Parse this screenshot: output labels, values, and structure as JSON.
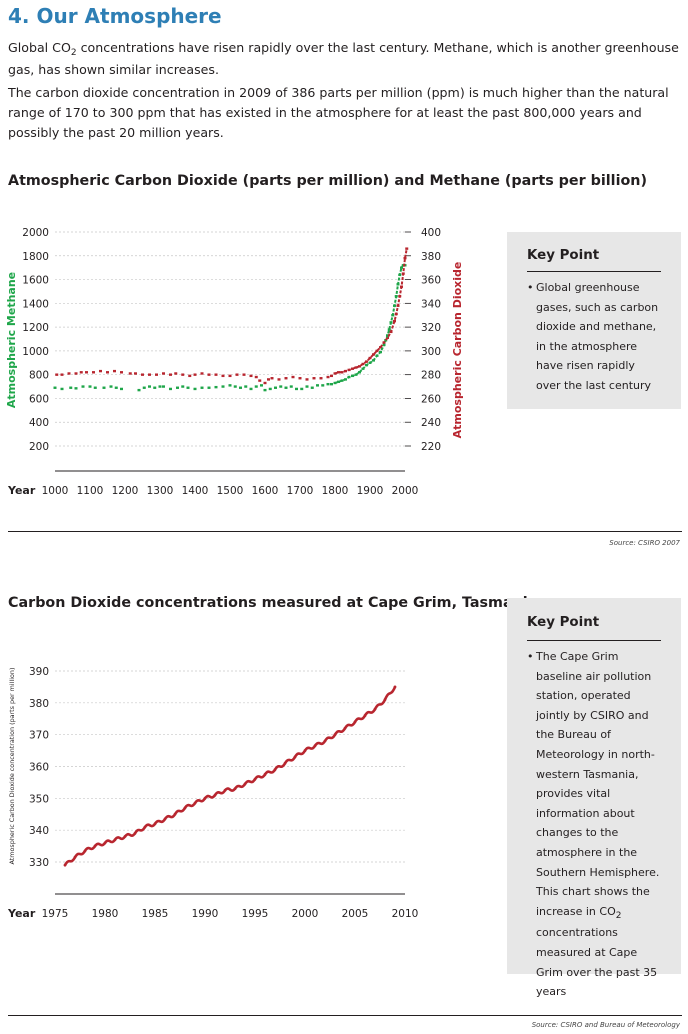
{
  "page": {
    "heading": "4. Our Atmosphere",
    "paragraph1": {
      "before": "Global CO",
      "sub": "2",
      "after": " concentrations have risen rapidly over the last century. Methane, which is another greenhouse gas, has shown similar increases."
    },
    "paragraph2": "The carbon dioxide concentration in 2009 of 386 parts per million (ppm) is much higher than the natural range of 170 to 300 ppm that has existed in the atmosphere for at least the past 800,000 years and possibly the past 20 million years."
  },
  "key_point_1": {
    "title": "Key Point",
    "bullet": "•",
    "text": "Global greenhouse gases, such as carbon dioxide and methane, in the atmosphere have risen rapidly over the last century"
  },
  "key_point_2": {
    "title": "Key Point",
    "bullet": "•",
    "text_before": "The Cape Grim baseline air pollution station, operated jointly by CSIRO and the Bureau of Meteorology in north-western Tasmania, provides vital information about changes to the atmosphere in the Southern Hemisphere. This chart shows the increase in CO",
    "text_sub": "2",
    "text_after": " concentrations measured at Cape Grim over the past 35 years"
  },
  "colors": {
    "methane": "#1fa64a",
    "co2": "#b8262f",
    "heading": "#2e7fb5",
    "keypoint_bg": "#e7e7e7"
  },
  "chart_data": [
    {
      "type": "scatter",
      "title": "Atmospheric Carbon Dioxide (parts per million) and Methane (parts per billion)",
      "source": "Source: CSIRO 2007",
      "xlabel": "Year",
      "x_ticks": [
        "1000",
        "1100",
        "1200",
        "1300",
        "1400",
        "1500",
        "1600",
        "1700",
        "1800",
        "1900",
        "2000"
      ],
      "xlim": [
        1000,
        2000
      ],
      "y_left": {
        "label": "Atmospheric Methane",
        "ticks": [
          "2000",
          "1800",
          "1600",
          "1400",
          "1200",
          "1000",
          "800",
          "600",
          "400",
          "200"
        ],
        "lim": [
          0,
          2000
        ]
      },
      "y_right": {
        "label": "Atmospheric Carbon Dioxide",
        "ticks": [
          "400",
          "380",
          "360",
          "340",
          "320",
          "300",
          "280",
          "260",
          "240",
          "220"
        ],
        "lim": [
          200,
          400
        ]
      },
      "grid": true,
      "series": [
        {
          "axis": "left",
          "x": [
            1000,
            1020,
            1045,
            1060,
            1080,
            1100,
            1115,
            1140,
            1160,
            1175,
            1190,
            1240,
            1255,
            1270,
            1285,
            1300,
            1310,
            1330,
            1350,
            1365,
            1380,
            1400,
            1420,
            1440,
            1460,
            1480,
            1500,
            1515,
            1530,
            1545,
            1560,
            1575,
            1590,
            1600,
            1615,
            1630,
            1645,
            1660,
            1675,
            1690,
            1705,
            1720,
            1735,
            1750,
            1765,
            1780,
            1790,
            1800,
            1810,
            1820,
            1830,
            1840,
            1850,
            1860,
            1870,
            1880,
            1890,
            1900,
            1910,
            1920,
            1930,
            1940,
            1945,
            1950,
            1955,
            1960,
            1965,
            1970,
            1975,
            1980,
            1985,
            1990,
            1995,
            2000
          ],
          "y": [
            690,
            680,
            690,
            685,
            700,
            700,
            690,
            690,
            700,
            690,
            680,
            670,
            690,
            700,
            690,
            700,
            700,
            680,
            690,
            700,
            690,
            680,
            690,
            690,
            695,
            700,
            710,
            700,
            690,
            700,
            680,
            700,
            710,
            670,
            680,
            690,
            700,
            690,
            700,
            680,
            680,
            700,
            690,
            710,
            710,
            720,
            720,
            730,
            740,
            750,
            760,
            780,
            790,
            800,
            820,
            850,
            880,
            900,
            920,
            960,
            990,
            1050,
            1090,
            1130,
            1180,
            1240,
            1300,
            1380,
            1460,
            1560,
            1640,
            1700,
            1720,
            1720
          ]
        },
        {
          "axis": "right",
          "x": [
            1005,
            1020,
            1040,
            1060,
            1075,
            1090,
            1110,
            1130,
            1150,
            1170,
            1190,
            1215,
            1230,
            1250,
            1270,
            1290,
            1310,
            1330,
            1345,
            1365,
            1385,
            1400,
            1420,
            1440,
            1460,
            1480,
            1500,
            1520,
            1540,
            1560,
            1575,
            1585,
            1600,
            1610,
            1620,
            1640,
            1660,
            1680,
            1700,
            1720,
            1740,
            1760,
            1780,
            1790,
            1800,
            1810,
            1820,
            1830,
            1840,
            1850,
            1860,
            1870,
            1880,
            1890,
            1900,
            1910,
            1920,
            1930,
            1940,
            1950,
            1960,
            1970,
            1975,
            1980,
            1985,
            1990,
            1995,
            2000,
            2005
          ],
          "y": [
            280,
            280,
            281,
            281,
            282,
            282,
            282,
            283,
            282,
            283,
            282,
            281,
            281,
            280,
            280,
            280,
            281,
            280,
            281,
            280,
            279,
            280,
            281,
            280,
            280,
            279,
            279,
            280,
            280,
            279,
            278,
            275,
            273,
            276,
            277,
            276,
            277,
            278,
            277,
            276,
            277,
            277,
            278,
            279,
            281,
            282,
            282,
            283,
            284,
            285,
            286,
            287,
            289,
            291,
            294,
            297,
            300,
            303,
            307,
            311,
            316,
            325,
            331,
            338,
            346,
            354,
            365,
            378,
            386
          ]
        }
      ]
    },
    {
      "type": "line",
      "title": "Carbon Dioxide concentrations measured at Cape Grim, Tasmania",
      "source": "Source: CSIRO and Bureau of Meteorology",
      "xlabel": "Year",
      "x_ticks": [
        "1975",
        "1980",
        "1985",
        "1990",
        "1995",
        "2000",
        "2005",
        "2010"
      ],
      "xlim": [
        1975,
        2010
      ],
      "ylabel": "Atmospheric Carbon Dioxide concentration (parts per million)",
      "y_ticks": [
        "390",
        "380",
        "370",
        "360",
        "350",
        "340",
        "330"
      ],
      "ylim": [
        325,
        395
      ],
      "grid": true,
      "series": [
        {
          "x": [
            1976,
            1977,
            1978,
            1979,
            1980,
            1981,
            1982,
            1983,
            1984,
            1985,
            1986,
            1987,
            1988,
            1989,
            1990,
            1991,
            1992,
            1993,
            1994,
            1995,
            1996,
            1997,
            1998,
            1999,
            2000,
            2001,
            2002,
            2003,
            2004,
            2005,
            2006,
            2007,
            2008,
            2009
          ],
          "y": [
            329,
            331.5,
            333.5,
            335,
            336,
            337,
            338,
            339,
            341,
            342,
            343.5,
            345,
            347,
            348.5,
            350,
            351,
            352.5,
            353,
            354.5,
            356,
            357.5,
            359,
            361,
            363,
            365,
            366.5,
            368,
            370,
            372,
            374,
            376,
            378,
            381,
            385
          ]
        }
      ]
    }
  ]
}
